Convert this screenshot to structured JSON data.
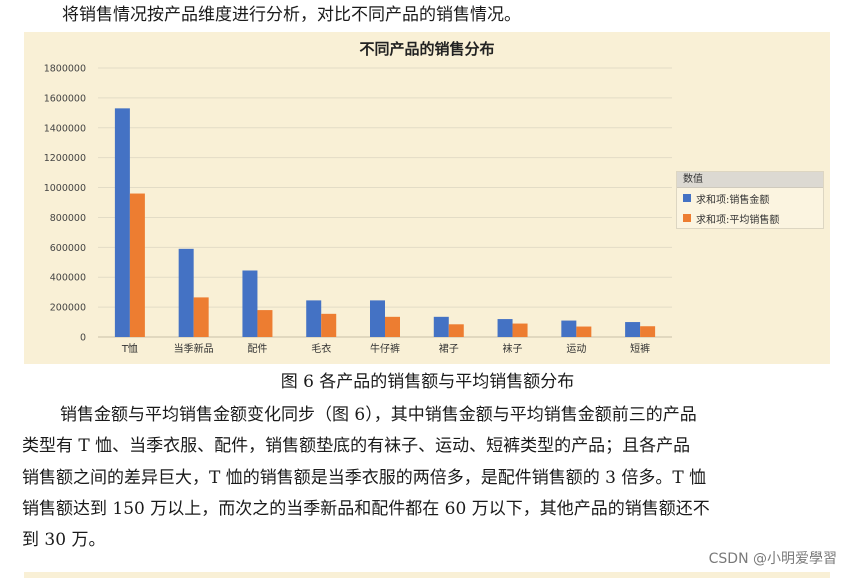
{
  "intro_text": "将销售情况按产品维度进行分析，对比不同产品的销售情况。",
  "chart_data": {
    "type": "bar",
    "title": "不同产品的销售分布",
    "categories": [
      "T恤",
      "当季新品",
      "配件",
      "毛衣",
      "牛仔裤",
      "裙子",
      "袜子",
      "运动",
      "短裤"
    ],
    "series": [
      {
        "name": "求和项:销售金额",
        "color": "#4472c4",
        "values": [
          1530000,
          590000,
          445000,
          245000,
          245000,
          135000,
          120000,
          110000,
          100000
        ]
      },
      {
        "name": "求和项:平均销售额",
        "color": "#ed7d31",
        "values": [
          960000,
          265000,
          180000,
          155000,
          135000,
          85000,
          90000,
          70000,
          72000
        ]
      }
    ],
    "ylim": [
      0,
      1800000
    ],
    "yticks": [
      "0",
      "200000",
      "400000",
      "600000",
      "800000",
      "1000000",
      "1200000",
      "1400000",
      "1600000",
      "1800000"
    ],
    "grid": true,
    "legend_title": "数值",
    "legend_position": "right"
  },
  "caption": "图 6  各产品的销售额与平均销售额分布",
  "paragraph_lines": [
    "销售金额与平均销售金额变化同步（图 6），其中销售金额与平均销售金额前三的产品",
    "类型有 T 恤、当季衣服、配件，销售额垫底的有袜子、运动、短裤类型的产品；且各产品",
    "销售额之间的差异巨大，T 恤的销售额是当季衣服的两倍多，是配件销售额的 3 倍多。T 恤",
    "销售额达到 150 万以上，而次之的当季新品和配件都在 60 万以下，其他产品的销售额还不",
    "到 30 万。"
  ],
  "watermark": "CSDN @小明爱學習"
}
